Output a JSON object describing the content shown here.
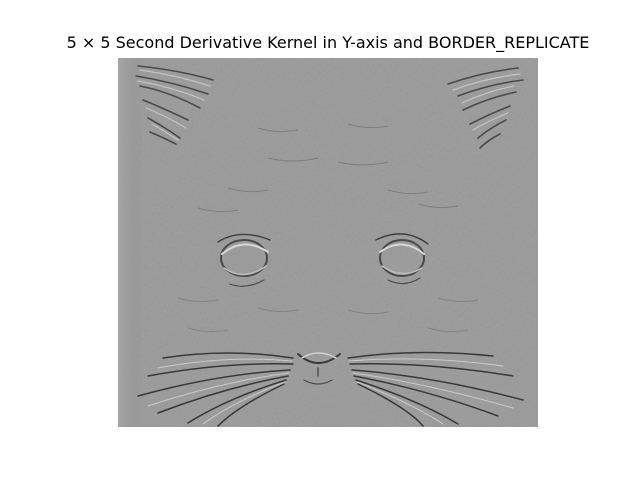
{
  "figure": {
    "title": "5 × 5 Second Derivative Kernel in Y-axis and BORDER_REPLICATE"
  },
  "image": {
    "subject": "cat-face",
    "filter": "second-derivative-y",
    "colors": {
      "background": "#ffffff",
      "mid_gray": "#8c8c8c",
      "dark_edge": "#3a3a3a",
      "light_edge": "#cfcfcf"
    }
  }
}
